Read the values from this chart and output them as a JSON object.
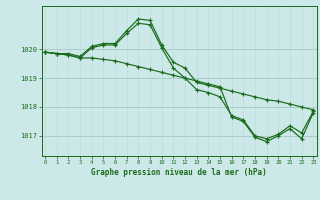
{
  "bg_color": "#cce8e8",
  "grid_color_h": "#aacccc",
  "grid_color_v": "#bbdddd",
  "line_color": "#1a6b1a",
  "title": "Graphe pression niveau de la mer (hPa)",
  "xlim": [
    -0.3,
    23.3
  ],
  "ylim": [
    1016.3,
    1021.5
  ],
  "yticks": [
    1017,
    1018,
    1019,
    1020
  ],
  "xticks": [
    0,
    1,
    2,
    3,
    4,
    5,
    6,
    7,
    8,
    9,
    10,
    11,
    12,
    13,
    14,
    15,
    16,
    17,
    18,
    19,
    20,
    21,
    22,
    23
  ],
  "series": [
    {
      "x": [
        0,
        1,
        2,
        3,
        4,
        5,
        6,
        7,
        8,
        9,
        10,
        11,
        12,
        13,
        14,
        15,
        16,
        17,
        18,
        19,
        20,
        21,
        22,
        23
      ],
      "y": [
        1019.9,
        1019.85,
        1019.85,
        1019.75,
        1020.1,
        1020.2,
        1020.2,
        1020.65,
        1021.05,
        1021.0,
        1020.15,
        1019.55,
        1019.35,
        1018.85,
        1018.75,
        1018.65,
        1018.55,
        1018.45,
        1018.35,
        1018.25,
        1018.2,
        1018.1,
        1018.0,
        1017.9
      ]
    },
    {
      "x": [
        0,
        1,
        2,
        3,
        4,
        5,
        6,
        7,
        8,
        9,
        10,
        11,
        12,
        13,
        14,
        15,
        16,
        17,
        18,
        19,
        20,
        21,
        22,
        23
      ],
      "y": [
        1019.9,
        1019.85,
        1019.8,
        1019.7,
        1020.05,
        1020.15,
        1020.15,
        1020.55,
        1020.9,
        1020.85,
        1020.05,
        1019.35,
        1019.0,
        1018.6,
        1018.5,
        1018.35,
        1017.7,
        1017.55,
        1017.0,
        1016.9,
        1017.05,
        1017.35,
        1017.1,
        1017.85
      ]
    },
    {
      "x": [
        0,
        1,
        2,
        3,
        4,
        5,
        6,
        7,
        8,
        9,
        10,
        11,
        12,
        13,
        14,
        15,
        16,
        17,
        18,
        19,
        20,
        21,
        22,
        23
      ],
      "y": [
        1019.9,
        1019.85,
        1019.8,
        1019.7,
        1019.7,
        1019.65,
        1019.6,
        1019.5,
        1019.4,
        1019.3,
        1019.2,
        1019.1,
        1019.0,
        1018.9,
        1018.8,
        1018.7,
        1017.65,
        1017.5,
        1016.95,
        1016.8,
        1017.0,
        1017.25,
        1016.9,
        1017.8
      ]
    }
  ]
}
